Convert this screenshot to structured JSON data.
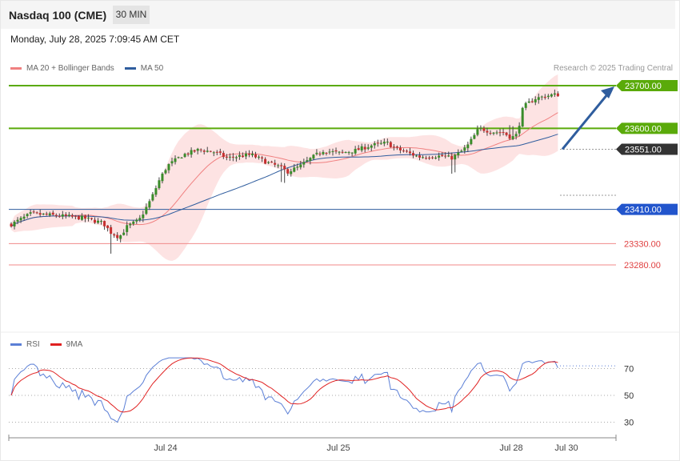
{
  "header": {
    "title": "Nasdaq 100 (CME)",
    "timeframe": "30 MIN"
  },
  "timestamp": "Monday, July 28, 2025 7:09:45 AM CET",
  "legend": {
    "items": [
      {
        "label": "MA 20 + Bollinger Bands",
        "color": "#f08080"
      },
      {
        "label": "MA 50",
        "color": "#2f5d9e"
      }
    ],
    "credit": "Research © 2025 Trading Central"
  },
  "rsi_legend": {
    "items": [
      {
        "label": "RSI",
        "color": "#5b7fd6"
      },
      {
        "label": "9MA",
        "color": "#e02020"
      }
    ]
  },
  "chart_data": [
    {
      "type": "candlestick",
      "ylim": [
        23220,
        23725
      ],
      "levels": [
        {
          "value": 23700,
          "label": "23700.00",
          "color": "#5aaa0a",
          "style": "green-solid"
        },
        {
          "value": 23600,
          "label": "23600.00",
          "color": "#5aaa0a",
          "style": "green-solid"
        },
        {
          "value": 23551,
          "label": "23551.00",
          "color": "#333333",
          "style": "current-dotted"
        },
        {
          "value": 23410,
          "label": "23410.00",
          "color": "#2255cc",
          "style": "pivot-blue"
        },
        {
          "value": 23330,
          "label": "23330.00",
          "color": "#e04040",
          "style": "red-line"
        },
        {
          "value": 23280,
          "label": "23280.00",
          "color": "#e04040",
          "style": "red-line"
        }
      ],
      "series": [
        {
          "name": "MA 20 + Bollinger Bands"
        },
        {
          "name": "MA 50"
        }
      ],
      "projection": {
        "from": 23551,
        "to": 23700
      },
      "x_ticks": [
        "Jul 24",
        "Jul 25",
        "Jul 28",
        "Jul 30"
      ]
    },
    {
      "type": "line",
      "series": [
        {
          "name": "RSI"
        },
        {
          "name": "9MA"
        }
      ],
      "ylim": [
        20,
        80
      ],
      "y_ticks": [
        "70",
        "50",
        "30"
      ],
      "y_tick_values": [
        70,
        50,
        30
      ],
      "last_value": 72
    }
  ]
}
